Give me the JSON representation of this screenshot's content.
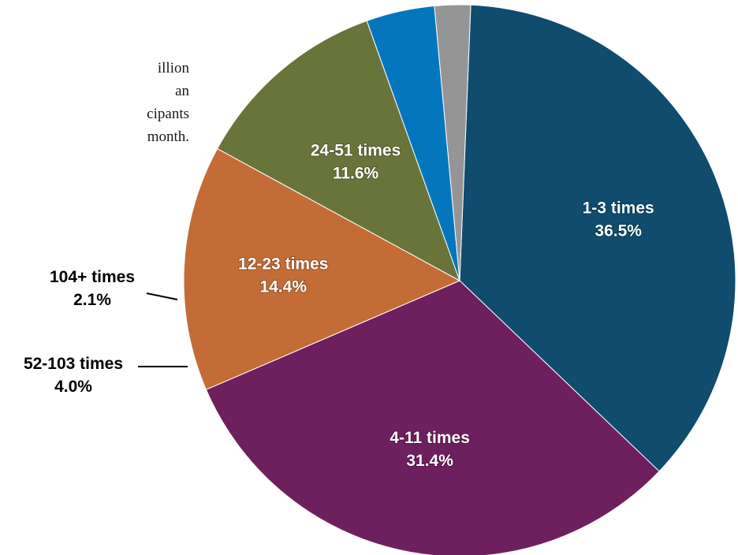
{
  "intro_text": {
    "line1": "illion",
    "line2": "an",
    "line3": "cipants",
    "line4": "month."
  },
  "chart_data": {
    "type": "pie",
    "title": "",
    "slices": [
      {
        "label": "1-3 times",
        "value": 36.5,
        "display": "36.5%",
        "color": "#0f4c6e"
      },
      {
        "label": "4-11 times",
        "value": 31.4,
        "display": "31.4%",
        "color": "#6e1f5e"
      },
      {
        "label": "12-23 times",
        "value": 14.4,
        "display": "14.4%",
        "color": "#c46c36"
      },
      {
        "label": "24-51 times",
        "value": 11.6,
        "display": "11.6%",
        "color": "#69743b"
      },
      {
        "label": "52-103 times",
        "value": 4.0,
        "display": "4.0%",
        "color": "#0476bd"
      },
      {
        "label": "104+ times",
        "value": 2.1,
        "display": "2.1%",
        "color": "#959595"
      }
    ]
  }
}
